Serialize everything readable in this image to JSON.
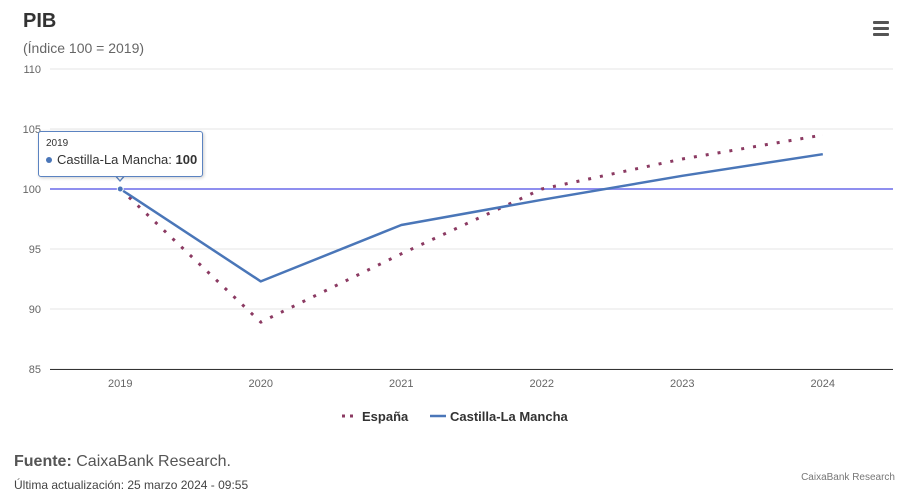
{
  "header": {
    "title": "PIB",
    "subtitle": "(Índice 100 = 2019)"
  },
  "menu": {
    "icon": "hamburger-menu-icon"
  },
  "chart_data": {
    "type": "line",
    "title": "PIB",
    "subtitle": "(Índice 100 = 2019)",
    "xlabel": "",
    "ylabel": "",
    "categories": [
      "2019",
      "2020",
      "2021",
      "2022",
      "2023",
      "2024"
    ],
    "ylim": [
      85,
      110
    ],
    "yticks": [
      85,
      90,
      95,
      100,
      105,
      110
    ],
    "grid": true,
    "reference_line": 100,
    "legend_position": "bottom-center",
    "series": [
      {
        "name": "España",
        "values": [
          100,
          88.9,
          94.6,
          100.0,
          102.5,
          104.5
        ],
        "color": "#8b3a62",
        "style": "dotted"
      },
      {
        "name": "Castilla-La Mancha",
        "values": [
          100,
          92.3,
          97.0,
          99.1,
          101.1,
          102.9
        ],
        "color": "#4a76b8",
        "style": "solid"
      }
    ]
  },
  "tooltip": {
    "year": "2019",
    "series_name": "Castilla-La Mancha",
    "value": "100"
  },
  "footer": {
    "source_label": "Fuente:",
    "source_value": "CaixaBank Research.",
    "updated": "Última actualización: 25 marzo 2024 - 09:55",
    "credit": "CaixaBank Research"
  }
}
